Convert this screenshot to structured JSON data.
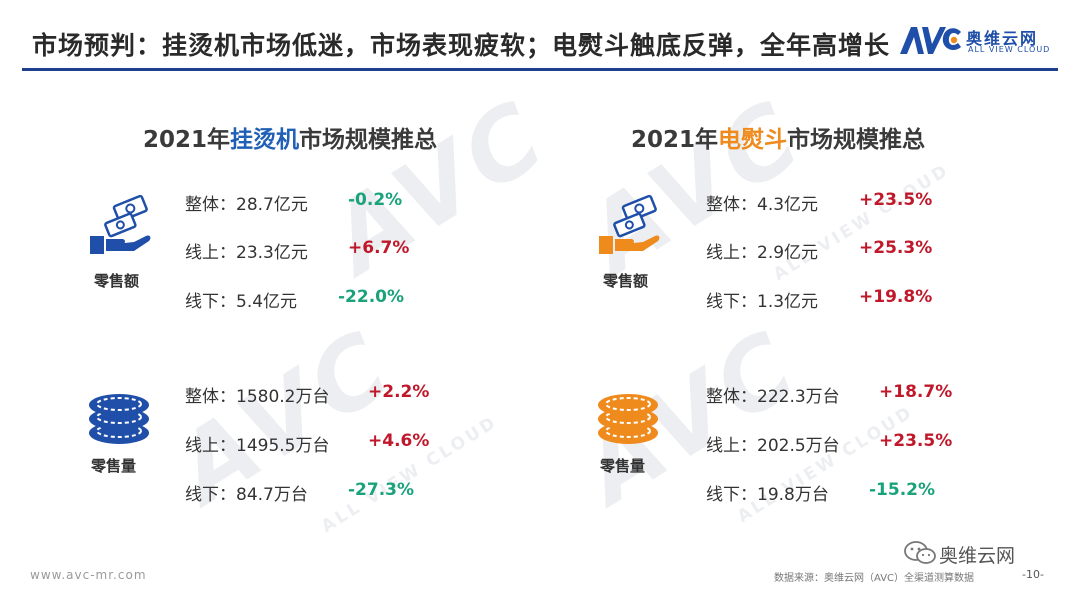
{
  "page": {
    "title": "市场预判：挂烫机市场低迷，市场表现疲软；电熨斗触底反弹，全年高增长"
  },
  "brand": {
    "logo_text": "AVC",
    "cn": "奥维云网",
    "en": "ALL VIEW CLOUD"
  },
  "watermark": {
    "logo": "AVC",
    "cn": "奥维云网",
    "en": "ALL VIEW CLOUD"
  },
  "left": {
    "title_prefix": "2021年",
    "title_highlight": "挂烫机",
    "title_suffix": "市场规模推总",
    "retail_value": {
      "caption": "零售额",
      "icon": "money-hand-icon",
      "rows": [
        {
          "label": "整体：",
          "value": "28.7亿元",
          "change": "-0.2%"
        },
        {
          "label": "线上：",
          "value": "23.3亿元",
          "change": "+6.7%"
        },
        {
          "label": "线下：",
          "value": "5.4亿元",
          "change": "-22.0%"
        }
      ]
    },
    "retail_volume": {
      "caption": "零售量",
      "icon": "coin-stack-icon",
      "rows": [
        {
          "label": "整体：",
          "value": "1580.2万台",
          "change": "+2.2%"
        },
        {
          "label": "线上：",
          "value": "1495.5万台",
          "change": "+4.6%"
        },
        {
          "label": "线下：",
          "value": "84.7万台",
          "change": "-27.3%"
        }
      ]
    }
  },
  "right": {
    "title_prefix": "2021年",
    "title_highlight": "电熨斗",
    "title_suffix": "市场规模推总",
    "retail_value": {
      "caption": "零售额",
      "icon": "money-hand-icon",
      "rows": [
        {
          "label": "整体：",
          "value": "4.3亿元",
          "change": "+23.5%"
        },
        {
          "label": "线上：",
          "value": "2.9亿元",
          "change": "+25.3%"
        },
        {
          "label": "线下：",
          "value": "1.3亿元",
          "change": "+19.8%"
        }
      ]
    },
    "retail_volume": {
      "caption": "零售量",
      "icon": "coin-stack-icon",
      "rows": [
        {
          "label": "整体：",
          "value": "222.3万台",
          "change": "+18.7%"
        },
        {
          "label": "线上：",
          "value": "202.5万台",
          "change": "+23.5%"
        },
        {
          "label": "线下：",
          "value": "19.8万台",
          "change": "-15.2%"
        }
      ]
    }
  },
  "colors": {
    "primary_blue": "#1f4fa8",
    "accent_orange": "#ef8a1d",
    "positive": "#c0182a",
    "negative": "#1aa27b"
  },
  "footer": {
    "url": "www.avc-mr.com",
    "source": "数据来源：奥维云网（AVC）全渠道测算数据",
    "page": "-10-",
    "wechat": "奥维云网"
  }
}
